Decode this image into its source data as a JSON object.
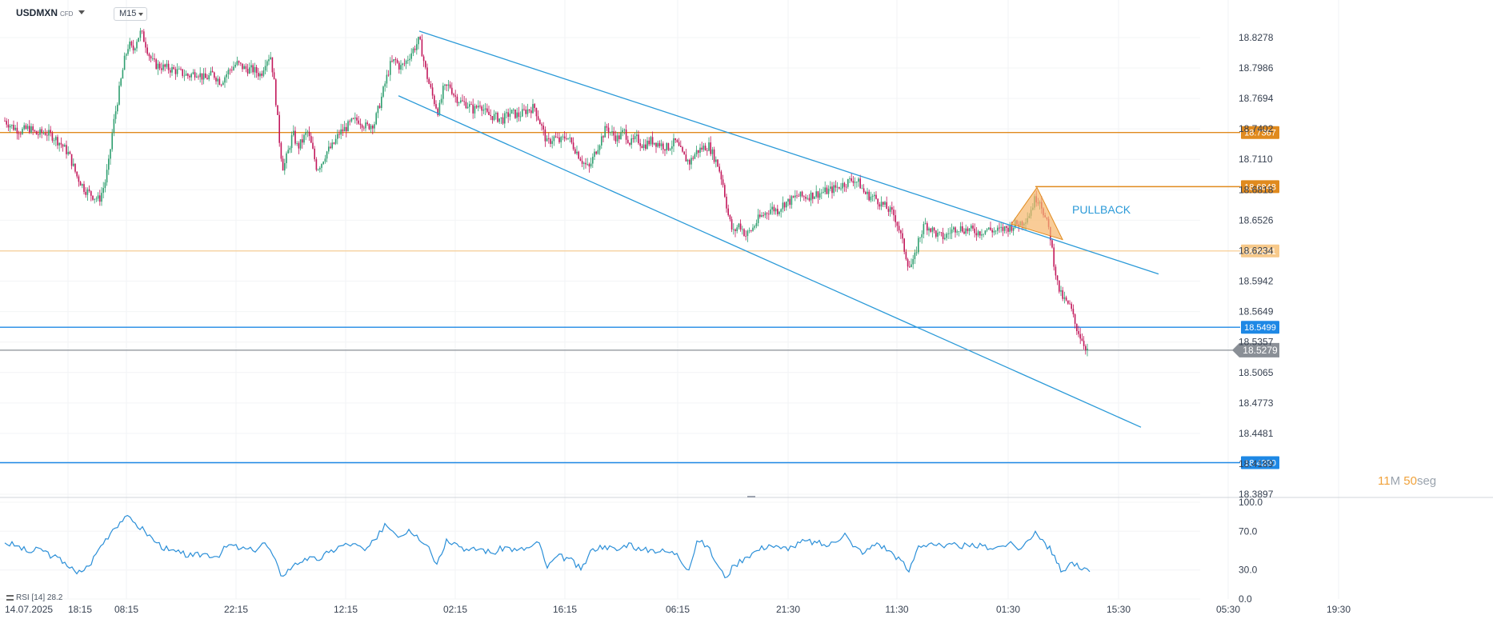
{
  "header": {
    "symbol": "USDMXN",
    "instrument_type": "CFD",
    "timeframe": "M15"
  },
  "countdown": {
    "minutes": "11",
    "minutes_unit": "M",
    "seconds": "50",
    "seconds_unit": "seg"
  },
  "colors": {
    "candle_up": "#2e9e6f",
    "candle_down": "#c2185b",
    "channel": "#2b9ad8",
    "level_dark_orange": "#e08a1e",
    "level_light_orange": "#f7c98a",
    "level_blue": "#1e88e5",
    "current_price": "#8a8f96",
    "triangle_fill": "#f7b76b",
    "rsi_line": "#2b8fd8"
  },
  "chart_data": [
    {
      "type": "candlestick",
      "symbol": "USDMXN",
      "timeframe": "M15",
      "ylim": [
        18.3897,
        18.8278
      ],
      "y_ticks": [
        "18.8278",
        "18.7986",
        "18.7694",
        "18.7402",
        "18.7110",
        "18.6818",
        "18.6526",
        "18.6234",
        "18.5942",
        "18.5649",
        "18.5357",
        "18.5065",
        "18.4773",
        "18.4481",
        "18.4189",
        "18.3897"
      ],
      "y_tick_values": [
        18.8278,
        18.7986,
        18.7694,
        18.7402,
        18.711,
        18.6818,
        18.6526,
        18.6234,
        18.5942,
        18.5649,
        18.5357,
        18.5065,
        18.4773,
        18.4481,
        18.4189,
        18.3897
      ],
      "x_tick_labels": [
        "18:15",
        "08:15",
        "22:15",
        "12:15",
        "02:15",
        "16:15",
        "06:15",
        "21:30",
        "11:30",
        "01:30",
        "15:30",
        "05:30",
        "19:30"
      ],
      "start_date": "14.07.2025",
      "close_path": [
        [
          0,
          18.748
        ],
        [
          10,
          18.742
        ],
        [
          20,
          18.738
        ],
        [
          30,
          18.741
        ],
        [
          40,
          18.735
        ],
        [
          50,
          18.737
        ],
        [
          60,
          18.733
        ],
        [
          70,
          18.726
        ],
        [
          80,
          18.716
        ],
        [
          90,
          18.695
        ],
        [
          100,
          18.682
        ],
        [
          110,
          18.676
        ],
        [
          118,
          18.672
        ],
        [
          125,
          18.688
        ],
        [
          130,
          18.708
        ],
        [
          135,
          18.741
        ],
        [
          140,
          18.764
        ],
        [
          145,
          18.786
        ],
        [
          150,
          18.808
        ],
        [
          155,
          18.822
        ],
        [
          160,
          18.815
        ],
        [
          165,
          18.826
        ],
        [
          170,
          18.833
        ],
        [
          175,
          18.824
        ],
        [
          180,
          18.812
        ],
        [
          185,
          18.804
        ],
        [
          190,
          18.801
        ],
        [
          200,
          18.799
        ],
        [
          210,
          18.797
        ],
        [
          220,
          18.794
        ],
        [
          230,
          18.791
        ],
        [
          240,
          18.795
        ],
        [
          250,
          18.788
        ],
        [
          260,
          18.793
        ],
        [
          270,
          18.785
        ],
        [
          280,
          18.796
        ],
        [
          290,
          18.803
        ],
        [
          300,
          18.798
        ],
        [
          310,
          18.797
        ],
        [
          320,
          18.792
        ],
        [
          326,
          18.806
        ],
        [
          332,
          18.811
        ],
        [
          336,
          18.789
        ],
        [
          340,
          18.758
        ],
        [
          344,
          18.722
        ],
        [
          348,
          18.702
        ],
        [
          354,
          18.718
        ],
        [
          360,
          18.736
        ],
        [
          366,
          18.722
        ],
        [
          372,
          18.729
        ],
        [
          378,
          18.738
        ],
        [
          384,
          18.722
        ],
        [
          390,
          18.702
        ],
        [
          396,
          18.708
        ],
        [
          402,
          18.718
        ],
        [
          410,
          18.724
        ],
        [
          418,
          18.736
        ],
        [
          426,
          18.741
        ],
        [
          434,
          18.747
        ],
        [
          442,
          18.749
        ],
        [
          452,
          18.742
        ],
        [
          462,
          18.746
        ],
        [
          470,
          18.768
        ],
        [
          476,
          18.786
        ],
        [
          482,
          18.802
        ],
        [
          488,
          18.806
        ],
        [
          494,
          18.799
        ],
        [
          500,
          18.803
        ],
        [
          506,
          18.811
        ],
        [
          512,
          18.818
        ],
        [
          518,
          18.826
        ],
        [
          522,
          18.812
        ],
        [
          526,
          18.796
        ],
        [
          530,
          18.784
        ],
        [
          536,
          18.768
        ],
        [
          542,
          18.756
        ],
        [
          548,
          18.778
        ],
        [
          556,
          18.782
        ],
        [
          562,
          18.772
        ],
        [
          570,
          18.766
        ],
        [
          578,
          18.764
        ],
        [
          586,
          18.758
        ],
        [
          594,
          18.765
        ],
        [
          602,
          18.754
        ],
        [
          612,
          18.752
        ],
        [
          622,
          18.749
        ],
        [
          632,
          18.756
        ],
        [
          642,
          18.753
        ],
        [
          652,
          18.758
        ],
        [
          662,
          18.761
        ],
        [
          670,
          18.744
        ],
        [
          678,
          18.726
        ],
        [
          686,
          18.732
        ],
        [
          694,
          18.728
        ],
        [
          702,
          18.734
        ],
        [
          712,
          18.722
        ],
        [
          722,
          18.709
        ],
        [
          730,
          18.702
        ],
        [
          738,
          18.718
        ],
        [
          746,
          18.732
        ],
        [
          752,
          18.742
        ],
        [
          758,
          18.736
        ],
        [
          766,
          18.731
        ],
        [
          774,
          18.738
        ],
        [
          782,
          18.726
        ],
        [
          790,
          18.731
        ],
        [
          798,
          18.724
        ],
        [
          808,
          18.729
        ],
        [
          818,
          18.726
        ],
        [
          828,
          18.722
        ],
        [
          838,
          18.728
        ],
        [
          848,
          18.714
        ],
        [
          856,
          18.708
        ],
        [
          864,
          18.718
        ],
        [
          872,
          18.722
        ],
        [
          880,
          18.724
        ],
        [
          886,
          18.714
        ],
        [
          892,
          18.704
        ],
        [
          898,
          18.686
        ],
        [
          904,
          18.658
        ],
        [
          910,
          18.64
        ],
        [
          918,
          18.649
        ],
        [
          926,
          18.638
        ],
        [
          934,
          18.644
        ],
        [
          942,
          18.654
        ],
        [
          950,
          18.659
        ],
        [
          958,
          18.664
        ],
        [
          966,
          18.662
        ],
        [
          974,
          18.669
        ],
        [
          982,
          18.671
        ],
        [
          990,
          18.676
        ],
        [
          1000,
          18.675
        ],
        [
          1010,
          18.677
        ],
        [
          1020,
          18.679
        ],
        [
          1030,
          18.681
        ],
        [
          1040,
          18.684
        ],
        [
          1050,
          18.688
        ],
        [
          1060,
          18.692
        ],
        [
          1068,
          18.688
        ],
        [
          1074,
          18.679
        ],
        [
          1080,
          18.676
        ],
        [
          1088,
          18.674
        ],
        [
          1096,
          18.668
        ],
        [
          1104,
          18.663
        ],
        [
          1112,
          18.657
        ],
        [
          1118,
          18.643
        ],
        [
          1124,
          18.625
        ],
        [
          1130,
          18.608
        ],
        [
          1136,
          18.612
        ],
        [
          1142,
          18.634
        ],
        [
          1150,
          18.649
        ],
        [
          1158,
          18.644
        ],
        [
          1166,
          18.638
        ],
        [
          1174,
          18.636
        ],
        [
          1182,
          18.642
        ],
        [
          1190,
          18.646
        ],
        [
          1198,
          18.644
        ],
        [
          1208,
          18.643
        ],
        [
          1218,
          18.641
        ],
        [
          1228,
          18.644
        ],
        [
          1238,
          18.642
        ],
        [
          1248,
          18.644
        ],
        [
          1256,
          18.646
        ],
        [
          1264,
          18.649
        ],
        [
          1272,
          18.651
        ],
        [
          1280,
          18.658
        ],
        [
          1288,
          18.674
        ],
        [
          1294,
          18.672
        ],
        [
          1300,
          18.655
        ],
        [
          1306,
          18.641
        ],
        [
          1310,
          18.618
        ],
        [
          1316,
          18.59
        ],
        [
          1320,
          18.581
        ],
        [
          1326,
          18.574
        ],
        [
          1332,
          18.569
        ],
        [
          1338,
          18.552
        ],
        [
          1344,
          18.542
        ],
        [
          1350,
          18.532
        ],
        [
          1354,
          18.5279
        ]
      ],
      "channel_upper": [
        [
          518,
          18.834
        ],
        [
          1442,
          18.601
        ]
      ],
      "channel_lower": [
        [
          492,
          18.772
        ],
        [
          1420,
          18.454
        ]
      ],
      "horizontal_levels": [
        {
          "value": 18.7367,
          "label": "18.7367",
          "style": "dark-orange"
        },
        {
          "value": 18.6848,
          "label": "18.6848",
          "style": "dark-orange",
          "from_x": 1288
        },
        {
          "value": 18.6231,
          "label": "18.6231",
          "style": "light-orange"
        },
        {
          "value": 18.5499,
          "label": "18.5499",
          "style": "blue"
        },
        {
          "value": 18.42,
          "label": "18.4200",
          "style": "blue"
        }
      ],
      "current_price": {
        "value": 18.5279,
        "label": "18.5279"
      },
      "annotations": [
        {
          "text": "PULLBACK",
          "x": 1334,
          "y": 18.659,
          "color": "#2b9ad8"
        }
      ],
      "pullback_triangle": [
        [
          1258,
          18.649
        ],
        [
          1290,
          18.684
        ],
        [
          1322,
          18.634
        ]
      ]
    },
    {
      "type": "line",
      "indicator": "RSI",
      "label": "RSI [14] 28.2",
      "period": 14,
      "last_value": 28.2,
      "ylim": [
        0,
        100
      ],
      "y_ticks": [
        "100.0",
        "70.0",
        "30.0",
        "0.0"
      ],
      "y_tick_values": [
        100,
        70,
        30,
        0
      ],
      "values": [
        [
          0,
          58
        ],
        [
          15,
          55
        ],
        [
          30,
          48
        ],
        [
          45,
          52
        ],
        [
          60,
          44
        ],
        [
          75,
          38
        ],
        [
          90,
          26
        ],
        [
          105,
          34
        ],
        [
          120,
          55
        ],
        [
          135,
          72
        ],
        [
          150,
          85
        ],
        [
          160,
          80
        ],
        [
          175,
          70
        ],
        [
          190,
          58
        ],
        [
          205,
          50
        ],
        [
          220,
          47
        ],
        [
          235,
          44
        ],
        [
          250,
          47
        ],
        [
          265,
          44
        ],
        [
          280,
          56
        ],
        [
          295,
          52
        ],
        [
          310,
          50
        ],
        [
          325,
          58
        ],
        [
          335,
          45
        ],
        [
          345,
          24
        ],
        [
          360,
          34
        ],
        [
          375,
          42
        ],
        [
          390,
          40
        ],
        [
          405,
          48
        ],
        [
          420,
          55
        ],
        [
          435,
          57
        ],
        [
          450,
          50
        ],
        [
          465,
          62
        ],
        [
          475,
          78
        ],
        [
          485,
          70
        ],
        [
          495,
          65
        ],
        [
          505,
          72
        ],
        [
          515,
          66
        ],
        [
          530,
          54
        ],
        [
          540,
          36
        ],
        [
          552,
          62
        ],
        [
          565,
          57
        ],
        [
          580,
          50
        ],
        [
          595,
          52
        ],
        [
          610,
          47
        ],
        [
          625,
          54
        ],
        [
          640,
          50
        ],
        [
          655,
          53
        ],
        [
          668,
          58
        ],
        [
          678,
          32
        ],
        [
          690,
          44
        ],
        [
          705,
          42
        ],
        [
          720,
          30
        ],
        [
          735,
          52
        ],
        [
          750,
          55
        ],
        [
          765,
          50
        ],
        [
          780,
          58
        ],
        [
          795,
          50
        ],
        [
          810,
          51
        ],
        [
          825,
          49
        ],
        [
          840,
          47
        ],
        [
          855,
          30
        ],
        [
          865,
          60
        ],
        [
          878,
          55
        ],
        [
          890,
          36
        ],
        [
          900,
          22
        ],
        [
          912,
          35
        ],
        [
          925,
          43
        ],
        [
          940,
          50
        ],
        [
          955,
          56
        ],
        [
          970,
          52
        ],
        [
          985,
          54
        ],
        [
          1000,
          60
        ],
        [
          1015,
          58
        ],
        [
          1030,
          55
        ],
        [
          1050,
          68
        ],
        [
          1060,
          54
        ],
        [
          1075,
          48
        ],
        [
          1090,
          58
        ],
        [
          1105,
          50
        ],
        [
          1120,
          40
        ],
        [
          1130,
          28
        ],
        [
          1142,
          55
        ],
        [
          1158,
          58
        ],
        [
          1174,
          53
        ],
        [
          1190,
          56
        ],
        [
          1206,
          54
        ],
        [
          1222,
          55
        ],
        [
          1238,
          53
        ],
        [
          1254,
          57
        ],
        [
          1270,
          52
        ],
        [
          1288,
          70
        ],
        [
          1300,
          58
        ],
        [
          1312,
          45
        ],
        [
          1320,
          28
        ],
        [
          1334,
          38
        ],
        [
          1346,
          30
        ],
        [
          1356,
          28.2
        ]
      ]
    }
  ]
}
